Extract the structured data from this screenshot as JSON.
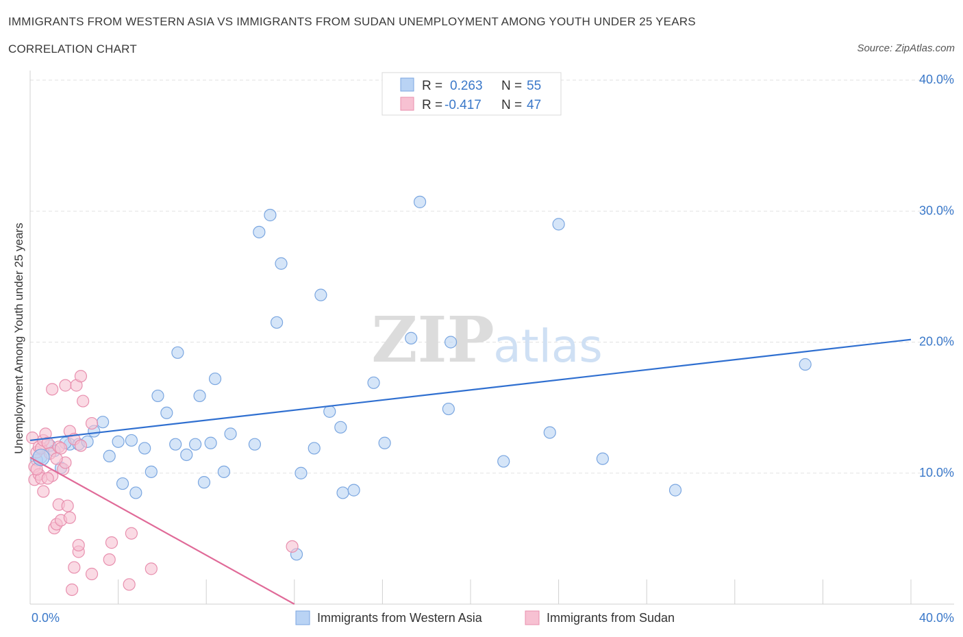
{
  "title": "IMMIGRANTS FROM WESTERN ASIA VS IMMIGRANTS FROM SUDAN UNEMPLOYMENT AMONG YOUTH UNDER 25 YEARS",
  "subtitle": "CORRELATION CHART",
  "source": "Source: ZipAtlas.com",
  "watermark": {
    "zip": "ZIP",
    "atlas": "atlas"
  },
  "legend_stats": [
    {
      "r_label": "R =",
      "r_value": "0.263",
      "n_label": "N =",
      "n_value": "55"
    },
    {
      "r_label": "R =",
      "r_value": "-0.417",
      "n_label": "N =",
      "n_value": "47"
    }
  ],
  "chart_data": {
    "type": "scatter",
    "ylabel": "Unemployment Among Youth under 25 years",
    "xlim": [
      0,
      40
    ],
    "ylim": [
      0,
      40
    ],
    "x_tick_labels": [
      "0.0%",
      "40.0%"
    ],
    "y_ticks": [
      {
        "value": 10,
        "label": "10.0%"
      },
      {
        "value": 20,
        "label": "20.0%"
      },
      {
        "value": 30,
        "label": "30.0%"
      },
      {
        "value": 40,
        "label": "40.0%"
      }
    ],
    "grid": true,
    "legend_position": "bottom-center",
    "colors": {
      "western_asia_fill": "#b9d3f4",
      "western_asia_stroke": "#7aa6e0",
      "western_asia_line": "#2f6fd0",
      "sudan_fill": "#f7c1d2",
      "sudan_stroke": "#e88fae",
      "sudan_line": "#e06a98",
      "accent_text": "#3a78c9"
    },
    "series": [
      {
        "name": "Immigrants from Western Asia",
        "trend": {
          "x": [
            0,
            40
          ],
          "y": [
            12.5,
            20.2
          ]
        },
        "points": [
          [
            0.5,
            11.2
          ],
          [
            0.9,
            12.1
          ],
          [
            1.1,
            11.7
          ],
          [
            1.4,
            10.4
          ],
          [
            1.8,
            12.2
          ],
          [
            2.2,
            12.2
          ],
          [
            2.6,
            12.4
          ],
          [
            2.9,
            13.2
          ],
          [
            3.3,
            13.9
          ],
          [
            3.6,
            11.3
          ],
          [
            4.0,
            12.4
          ],
          [
            4.2,
            9.2
          ],
          [
            4.6,
            12.5
          ],
          [
            4.8,
            8.5
          ],
          [
            5.2,
            11.9
          ],
          [
            5.5,
            10.1
          ],
          [
            5.8,
            15.9
          ],
          [
            6.2,
            14.6
          ],
          [
            6.6,
            12.2
          ],
          [
            6.7,
            19.2
          ],
          [
            7.1,
            11.4
          ],
          [
            7.5,
            12.2
          ],
          [
            7.7,
            15.9
          ],
          [
            7.9,
            9.3
          ],
          [
            8.2,
            12.3
          ],
          [
            8.4,
            17.2
          ],
          [
            8.8,
            10.1
          ],
          [
            9.1,
            13.0
          ],
          [
            10.2,
            12.2
          ],
          [
            10.4,
            28.4
          ],
          [
            10.9,
            29.7
          ],
          [
            11.2,
            21.5
          ],
          [
            11.4,
            26.0
          ],
          [
            12.1,
            3.8
          ],
          [
            12.3,
            10.0
          ],
          [
            12.9,
            11.9
          ],
          [
            13.2,
            23.6
          ],
          [
            13.6,
            14.7
          ],
          [
            14.1,
            13.5
          ],
          [
            14.2,
            8.5
          ],
          [
            14.7,
            8.7
          ],
          [
            15.6,
            16.9
          ],
          [
            16.1,
            12.3
          ],
          [
            17.3,
            20.3
          ],
          [
            17.7,
            30.7
          ],
          [
            19.0,
            14.9
          ],
          [
            19.1,
            20.0
          ],
          [
            21.5,
            10.9
          ],
          [
            23.6,
            13.1
          ],
          [
            24.0,
            29.0
          ],
          [
            26.0,
            11.1
          ],
          [
            29.3,
            8.7
          ],
          [
            35.2,
            18.3
          ],
          [
            0.3,
            11.0
          ],
          [
            1.6,
            12.3
          ]
        ]
      },
      {
        "name": "Immigrants from Sudan",
        "trend": {
          "x": [
            0,
            12
          ],
          "y": [
            11.2,
            0
          ]
        },
        "points": [
          [
            0.1,
            12.7
          ],
          [
            0.2,
            10.5
          ],
          [
            0.2,
            9.5
          ],
          [
            0.3,
            11.6
          ],
          [
            0.4,
            9.9
          ],
          [
            0.4,
            12.0
          ],
          [
            0.5,
            9.6
          ],
          [
            0.5,
            11.9
          ],
          [
            0.6,
            8.6
          ],
          [
            0.6,
            12.5
          ],
          [
            0.7,
            13.0
          ],
          [
            0.8,
            12.3
          ],
          [
            0.9,
            11.5
          ],
          [
            1.0,
            9.8
          ],
          [
            1.0,
            16.4
          ],
          [
            1.1,
            5.8
          ],
          [
            1.2,
            6.1
          ],
          [
            1.3,
            7.6
          ],
          [
            1.3,
            12.0
          ],
          [
            1.4,
            6.4
          ],
          [
            1.4,
            11.9
          ],
          [
            1.5,
            10.3
          ],
          [
            1.6,
            16.7
          ],
          [
            1.6,
            10.8
          ],
          [
            1.7,
            7.5
          ],
          [
            1.8,
            6.6
          ],
          [
            1.8,
            13.2
          ],
          [
            1.9,
            1.1
          ],
          [
            2.0,
            12.6
          ],
          [
            2.0,
            2.8
          ],
          [
            2.1,
            16.7
          ],
          [
            2.2,
            4.0
          ],
          [
            2.2,
            4.5
          ],
          [
            2.3,
            17.4
          ],
          [
            2.3,
            12.1
          ],
          [
            2.4,
            15.5
          ],
          [
            2.8,
            2.3
          ],
          [
            2.8,
            13.8
          ],
          [
            3.6,
            3.4
          ],
          [
            3.7,
            4.7
          ],
          [
            4.5,
            1.5
          ],
          [
            4.6,
            5.4
          ],
          [
            5.5,
            2.7
          ],
          [
            0.3,
            10.3
          ],
          [
            0.8,
            9.6
          ],
          [
            11.9,
            4.4
          ],
          [
            1.2,
            11.1
          ]
        ]
      }
    ]
  },
  "bottom_legend": [
    {
      "label": "Immigrants from Western Asia"
    },
    {
      "label": "Immigrants from Sudan"
    }
  ]
}
